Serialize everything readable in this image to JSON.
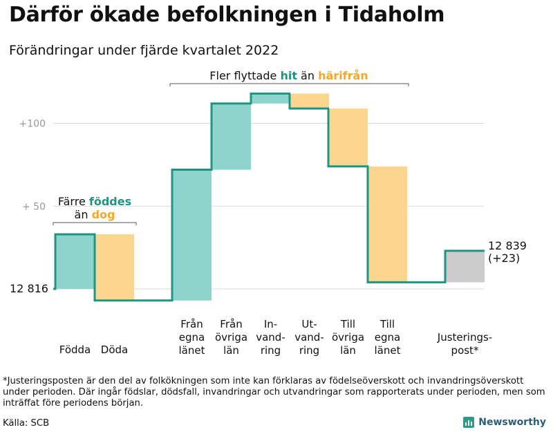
{
  "title": "Därför ökade befolkningen i Tidaholm",
  "subtitle": "Förändringar under fjärde kvartalet 2022",
  "colors": {
    "increase": "#8dd5cc",
    "decrease": "#fcd68f",
    "adjustment": "#cccccc",
    "line": "#1e9483",
    "grid": "#d9d9d9",
    "tick": "#999999",
    "accent_teal": "#1e9483",
    "accent_orange": "#f4a92b"
  },
  "chart_data": {
    "type": "waterfall",
    "start_value": 12816,
    "start_label": "12 816",
    "end_label": "12 839",
    "end_change_label": "(+23)",
    "yticks": [
      {
        "value": 100,
        "label": "+100"
      },
      {
        "value": 50,
        "label": "+ 50"
      }
    ],
    "steps": [
      {
        "category": "Födda",
        "delta": 33,
        "kind": "increase"
      },
      {
        "category": "Döda",
        "delta": -40,
        "kind": "decrease"
      },
      {
        "category": "Från egna länet",
        "label_lines": [
          "Från",
          "egna",
          "länet"
        ],
        "delta": 79,
        "kind": "increase"
      },
      {
        "category": "Från övriga län",
        "label_lines": [
          "Från",
          "övriga",
          "län"
        ],
        "delta": 40,
        "kind": "increase"
      },
      {
        "category": "Invandring",
        "label_lines": [
          "In-",
          "vand-",
          "ring"
        ],
        "delta": 6,
        "kind": "increase"
      },
      {
        "category": "Utvandring",
        "label_lines": [
          "Ut-",
          "vand-",
          "ring"
        ],
        "delta": -9,
        "kind": "decrease"
      },
      {
        "category": "Till övriga län",
        "label_lines": [
          "Till",
          "övriga",
          "län"
        ],
        "delta": -35,
        "kind": "decrease"
      },
      {
        "category": "Till egna länet",
        "label_lines": [
          "Till",
          "egna",
          "länet"
        ],
        "delta": -70,
        "kind": "decrease"
      },
      {
        "category": "Justeringspost*",
        "label_lines": [
          "Justerings-",
          "post*"
        ],
        "delta": 19,
        "kind": "adjustment"
      }
    ],
    "annotations": [
      {
        "id": "births",
        "line1": [
          {
            "text": "Färre ",
            "color": "dark"
          },
          {
            "text": "föddes",
            "color": "teal"
          }
        ],
        "line2": [
          {
            "text": "än ",
            "color": "dark"
          },
          {
            "text": "dog",
            "color": "orange"
          }
        ]
      },
      {
        "id": "migration",
        "line1": [
          {
            "text": "Fler flyttade ",
            "color": "dark"
          },
          {
            "text": "hit",
            "color": "teal"
          },
          {
            "text": " än ",
            "color": "dark"
          },
          {
            "text": "härifrån",
            "color": "orange"
          }
        ]
      }
    ]
  },
  "footnote": "*Justeringsposten är den del av folkökningen som inte kan förklaras av födelseöverskott och invandringsöverskott under perioden. Där ingår födslar, dödsfall, invandringar och utvandringar som rapporterats under perioden, men som inträffat före periodens början.",
  "source": "Källa: SCB",
  "brand": {
    "name": "Newsworthy",
    "icon": "bar-chart-logo-icon"
  }
}
